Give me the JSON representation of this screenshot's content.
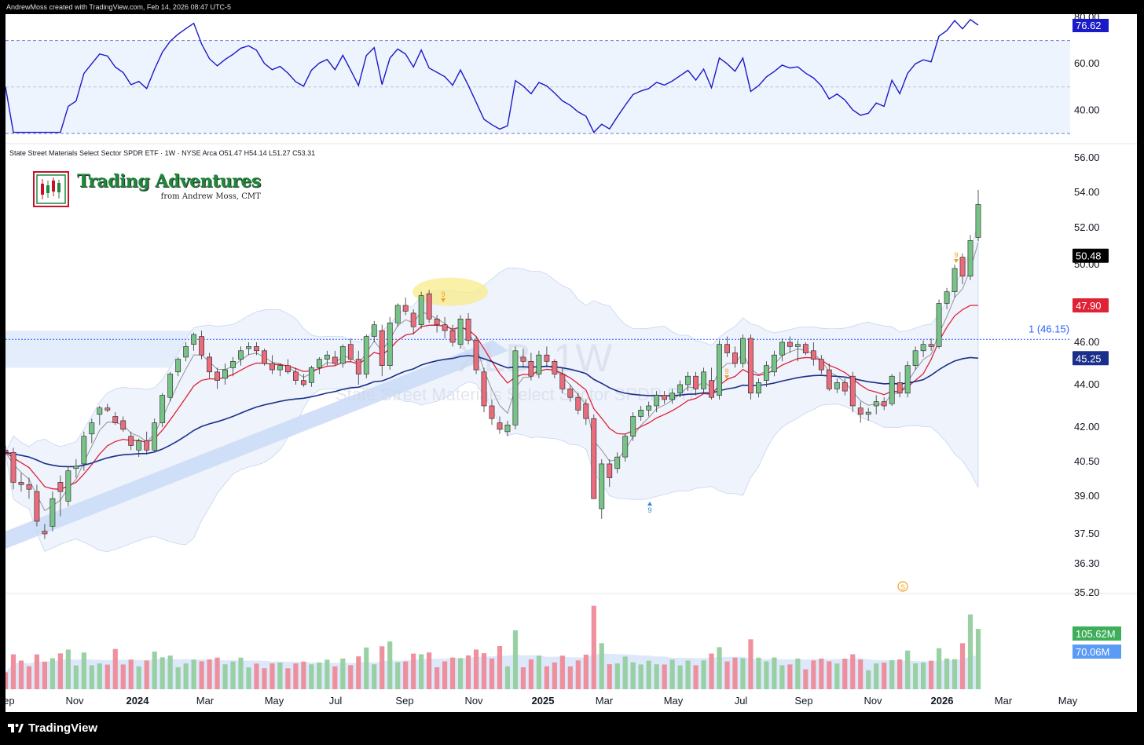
{
  "header": {
    "text": "AndrewMoss created with TradingView.com, Feb 14, 2026 08:47 UTC-5"
  },
  "footer": {
    "brand": "TradingView"
  },
  "watermark": {
    "ticker": "XLB, 1W",
    "name": "State Street Materials Select Sector SPDR ETF"
  },
  "brand": {
    "title": "Trading Adventures",
    "subtitle": "from Andrew Moss, CMT"
  },
  "legend": {
    "line": "State Street Materials Select Sector SPDR ETF · 1W · NYSE Arca  O51.47  H54.14  L51.27  C53.31"
  },
  "colors": {
    "up": "#77c387",
    "down": "#ea6b7b",
    "ema_fast": "#e02236",
    "ma_slow": "#1a2f8a",
    "rsi": "#1a1ac8",
    "band": "#dde9fb"
  },
  "price_axis": {
    "ticks": [
      "56.00",
      "54.00",
      "52.00",
      "50.00",
      "46.00",
      "44.00",
      "42.00",
      "40.50",
      "39.00",
      "37.50",
      "36.30",
      "35.20"
    ],
    "range": [
      35.2,
      56.0
    ]
  },
  "badges": [
    {
      "label": "50.48",
      "bg": "#000000",
      "fg": "#ffffff",
      "value": 50.48
    },
    {
      "label": "47.90",
      "bg": "#e02236",
      "fg": "#ffffff",
      "value": 47.9
    },
    {
      "label": "45.25",
      "bg": "#1a2f8a",
      "fg": "#ffffff",
      "value": 45.25
    }
  ],
  "hline": {
    "label": "1 (46.15)",
    "value": 46.15
  },
  "rsi": {
    "ticks": [
      "80.00",
      "60.00",
      "40.00"
    ],
    "last": "76.62",
    "range": [
      30,
      80
    ],
    "upper": 70,
    "mid": 50,
    "lower": 30
  },
  "volume": {
    "badges": [
      {
        "label": "105.62M",
        "bg": "#3fae5a"
      },
      {
        "label": "70.06M",
        "bg": "#5b9bf5"
      }
    ]
  },
  "x_axis": {
    "labels": [
      "Sep",
      "Nov",
      "2024",
      "Mar",
      "May",
      "Jul",
      "Sep",
      "Nov",
      "2025",
      "Mar",
      "May",
      "Jul",
      "Sep",
      "Nov",
      "2026",
      "Mar",
      "May"
    ],
    "bold": [
      "2024",
      "2025",
      "2026"
    ]
  },
  "markers": [
    {
      "text": "9",
      "color": "#f0a020"
    },
    {
      "text": "9",
      "color": "#f0a020"
    },
    {
      "text": "9",
      "color": "#f0a020"
    },
    {
      "text": "9",
      "color": "#2a8ad8"
    }
  ],
  "event_marker": "S",
  "chart_data": {
    "type": "candlestick",
    "interval": "1W",
    "symbol": "XLB",
    "ylim": [
      35.2,
      56.0
    ],
    "candles": [
      [
        41.0,
        41.2,
        40.8,
        40.9
      ],
      [
        40.9,
        41.1,
        39.3,
        39.6
      ],
      [
        39.6,
        40.0,
        39.2,
        39.5
      ],
      [
        39.5,
        39.8,
        38.9,
        39.3
      ],
      [
        39.2,
        39.5,
        37.8,
        38.0
      ],
      [
        37.6,
        37.9,
        37.3,
        37.5
      ],
      [
        37.8,
        39.2,
        37.6,
        38.9
      ],
      [
        39.6,
        39.9,
        38.2,
        39.2
      ],
      [
        38.8,
        40.3,
        38.6,
        40.1
      ],
      [
        40.2,
        40.6,
        39.8,
        40.3
      ],
      [
        40.4,
        41.8,
        40.1,
        41.6
      ],
      [
        41.7,
        42.4,
        41.3,
        42.2
      ],
      [
        42.6,
        43.0,
        42.1,
        42.9
      ],
      [
        42.9,
        43.1,
        42.7,
        42.8
      ],
      [
        42.5,
        42.7,
        42.1,
        42.2
      ],
      [
        42.3,
        42.5,
        41.8,
        41.9
      ],
      [
        41.6,
        41.8,
        41.0,
        41.2
      ],
      [
        41.0,
        41.5,
        40.7,
        41.4
      ],
      [
        41.4,
        41.8,
        40.8,
        41.0
      ],
      [
        41.0,
        42.4,
        40.9,
        42.2
      ],
      [
        42.2,
        43.6,
        42.0,
        43.5
      ],
      [
        43.4,
        44.6,
        43.2,
        44.5
      ],
      [
        44.6,
        45.3,
        44.4,
        45.2
      ],
      [
        45.3,
        46.0,
        45.1,
        45.8
      ],
      [
        45.9,
        46.5,
        45.6,
        46.4
      ],
      [
        46.3,
        46.6,
        45.2,
        45.4
      ],
      [
        45.3,
        45.5,
        44.3,
        44.6
      ],
      [
        44.6,
        44.8,
        43.8,
        44.2
      ],
      [
        44.3,
        45.0,
        44.0,
        44.7
      ],
      [
        44.8,
        45.3,
        44.4,
        45.1
      ],
      [
        45.2,
        45.8,
        44.9,
        45.6
      ],
      [
        45.7,
        46.0,
        45.4,
        45.8
      ],
      [
        45.8,
        46.0,
        45.4,
        45.6
      ],
      [
        45.6,
        45.7,
        44.9,
        45.0
      ],
      [
        45.0,
        45.4,
        44.5,
        44.7
      ],
      [
        44.7,
        45.0,
        44.4,
        44.9
      ],
      [
        44.9,
        45.2,
        44.5,
        44.6
      ],
      [
        44.6,
        44.8,
        44.0,
        44.2
      ],
      [
        44.2,
        44.5,
        43.9,
        44.0
      ],
      [
        44.1,
        44.9,
        43.9,
        44.8
      ],
      [
        44.8,
        45.3,
        44.5,
        45.2
      ],
      [
        45.2,
        45.6,
        44.9,
        45.4
      ],
      [
        45.3,
        45.6,
        44.9,
        45.0
      ],
      [
        45.0,
        45.9,
        44.8,
        45.8
      ],
      [
        45.9,
        46.2,
        45.1,
        45.2
      ],
      [
        45.2,
        45.6,
        44.0,
        44.5
      ],
      [
        44.5,
        46.4,
        44.3,
        46.3
      ],
      [
        46.3,
        47.1,
        46.0,
        46.9
      ],
      [
        46.6,
        46.9,
        44.4,
        44.9
      ],
      [
        44.9,
        47.3,
        44.7,
        47.0
      ],
      [
        47.0,
        48.0,
        46.8,
        47.9
      ],
      [
        47.9,
        48.3,
        47.4,
        47.6
      ],
      [
        47.5,
        47.7,
        46.4,
        46.8
      ],
      [
        46.9,
        48.6,
        46.7,
        48.4
      ],
      [
        48.5,
        48.7,
        47.0,
        47.2
      ],
      [
        47.2,
        47.4,
        46.5,
        46.9
      ],
      [
        46.9,
        47.3,
        46.2,
        46.6
      ],
      [
        46.6,
        46.9,
        45.8,
        46.0
      ],
      [
        45.9,
        47.4,
        45.7,
        47.2
      ],
      [
        47.2,
        47.5,
        45.9,
        46.1
      ],
      [
        46.1,
        46.3,
        44.5,
        44.7
      ],
      [
        44.6,
        44.8,
        42.7,
        43.0
      ],
      [
        43.0,
        43.3,
        42.1,
        42.4
      ],
      [
        42.2,
        42.5,
        41.7,
        41.9
      ],
      [
        41.8,
        42.3,
        41.6,
        42.1
      ],
      [
        42.1,
        45.8,
        41.9,
        45.6
      ],
      [
        45.3,
        45.7,
        44.8,
        45.1
      ],
      [
        45.1,
        45.5,
        44.2,
        44.4
      ],
      [
        44.5,
        45.6,
        44.3,
        45.4
      ],
      [
        45.4,
        45.8,
        44.9,
        45.1
      ],
      [
        45.1,
        45.2,
        44.3,
        44.5
      ],
      [
        44.5,
        44.8,
        43.6,
        43.8
      ],
      [
        43.8,
        44.0,
        43.2,
        43.4
      ],
      [
        43.4,
        43.6,
        42.6,
        42.8
      ],
      [
        43.1,
        43.3,
        42.1,
        42.4
      ],
      [
        42.4,
        42.6,
        38.9,
        38.9
      ],
      [
        38.5,
        40.6,
        38.1,
        40.4
      ],
      [
        40.4,
        40.6,
        39.4,
        39.8
      ],
      [
        40.2,
        40.9,
        40.0,
        40.7
      ],
      [
        40.7,
        41.7,
        40.5,
        41.6
      ],
      [
        41.6,
        42.7,
        41.4,
        42.5
      ],
      [
        42.5,
        43.0,
        42.3,
        42.8
      ],
      [
        42.8,
        43.2,
        42.5,
        43.0
      ],
      [
        43.0,
        43.7,
        42.7,
        43.5
      ],
      [
        43.5,
        43.7,
        43.1,
        43.3
      ],
      [
        43.3,
        43.8,
        43.1,
        43.6
      ],
      [
        43.6,
        44.2,
        43.4,
        44.0
      ],
      [
        44.0,
        44.6,
        43.7,
        44.4
      ],
      [
        44.4,
        44.6,
        43.5,
        43.8
      ],
      [
        43.8,
        44.8,
        43.6,
        44.6
      ],
      [
        44.2,
        44.8,
        43.3,
        43.4
      ],
      [
        43.5,
        46.1,
        43.3,
        45.9
      ],
      [
        45.9,
        46.3,
        45.3,
        45.5
      ],
      [
        45.5,
        45.8,
        44.8,
        45.0
      ],
      [
        45.0,
        46.4,
        44.8,
        46.2
      ],
      [
        46.2,
        46.4,
        43.3,
        43.6
      ],
      [
        43.6,
        44.3,
        43.4,
        44.1
      ],
      [
        44.2,
        45.1,
        43.9,
        44.9
      ],
      [
        44.6,
        45.6,
        44.4,
        45.4
      ],
      [
        45.4,
        46.2,
        45.1,
        46.0
      ],
      [
        46.0,
        46.3,
        45.5,
        45.8
      ],
      [
        45.8,
        46.1,
        45.1,
        45.9
      ],
      [
        45.9,
        46.0,
        45.4,
        45.5
      ],
      [
        45.6,
        46.0,
        44.9,
        45.2
      ],
      [
        45.2,
        45.4,
        44.5,
        44.7
      ],
      [
        44.7,
        45.0,
        43.7,
        43.8
      ],
      [
        43.8,
        44.3,
        43.6,
        44.1
      ],
      [
        44.1,
        44.3,
        43.5,
        43.7
      ],
      [
        44.4,
        44.6,
        42.7,
        43.0
      ],
      [
        42.9,
        43.2,
        42.2,
        42.6
      ],
      [
        42.6,
        42.9,
        42.3,
        42.7
      ],
      [
        43.0,
        43.5,
        42.6,
        43.2
      ],
      [
        43.2,
        43.4,
        42.8,
        43.0
      ],
      [
        43.1,
        44.5,
        43.0,
        44.4
      ],
      [
        44.1,
        44.6,
        43.4,
        43.6
      ],
      [
        43.6,
        45.1,
        43.4,
        44.9
      ],
      [
        44.9,
        45.8,
        44.7,
        45.6
      ],
      [
        45.6,
        46.1,
        45.3,
        45.9
      ],
      [
        45.9,
        46.2,
        45.6,
        45.8
      ],
      [
        45.8,
        48.2,
        45.7,
        48.0
      ],
      [
        48.0,
        48.8,
        47.7,
        48.6
      ],
      [
        48.6,
        50.0,
        48.3,
        49.8
      ],
      [
        50.4,
        50.6,
        49.0,
        49.4
      ],
      [
        49.4,
        51.6,
        49.2,
        51.3
      ],
      [
        51.47,
        54.14,
        51.27,
        53.31
      ]
    ],
    "ema_fast_end": 47.9,
    "ma_slow_end": 45.25,
    "rsi_last": 76.62,
    "volume_last": "105.62M",
    "volume_avg": "70.06M"
  }
}
